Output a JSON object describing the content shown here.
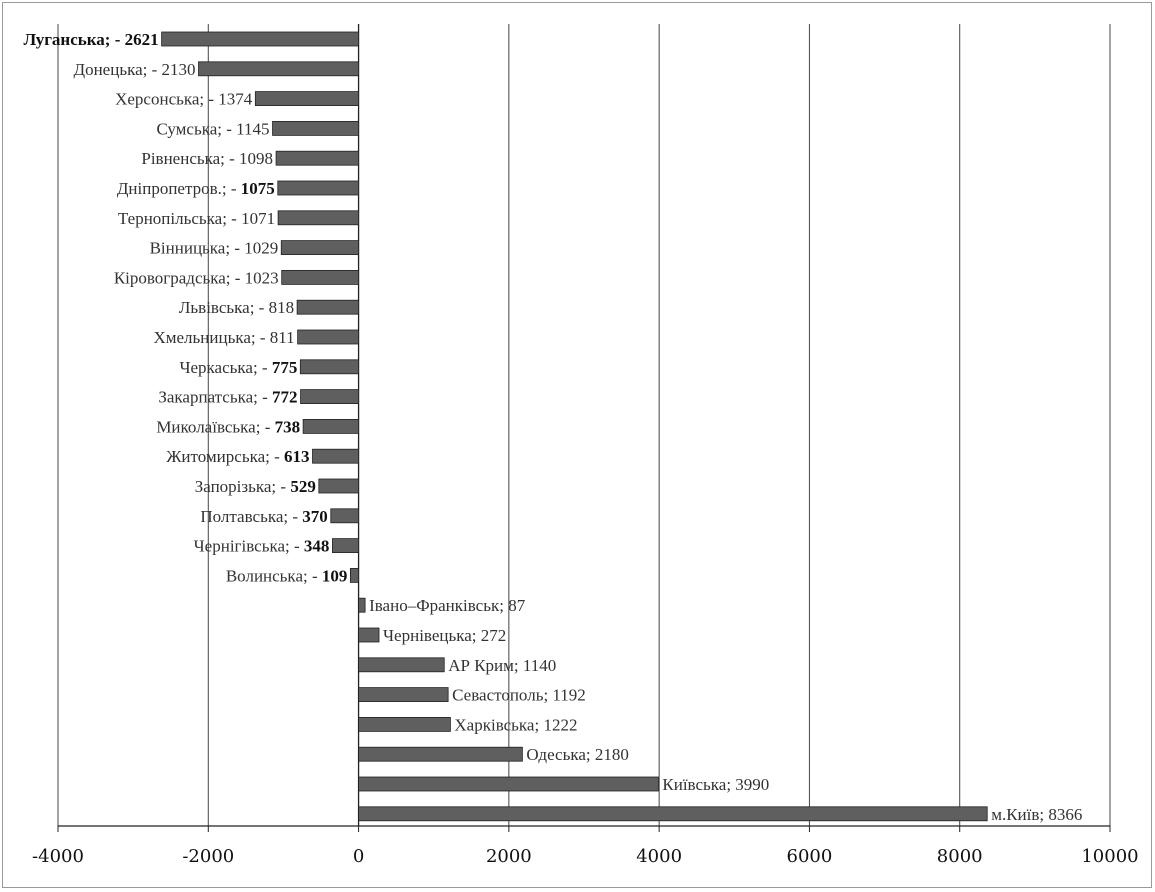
{
  "chart_data": {
    "type": "bar",
    "orientation": "horizontal",
    "xlim": [
      -4000,
      10000
    ],
    "x_ticks": [
      -4000,
      -2000,
      0,
      2000,
      4000,
      6000,
      8000,
      10000
    ],
    "grid": "vertical",
    "bar_color": "#5f5f5f",
    "categories": [
      {
        "name": "Луганська",
        "value": -2621,
        "label": "Луганська; - 2621",
        "bold": "full"
      },
      {
        "name": "Донецька",
        "value": -2130,
        "label": "Донецька; - 2130",
        "bold": "none"
      },
      {
        "name": "Херсонська",
        "value": -1374,
        "label": "Херсонська; - 1374",
        "bold": "none"
      },
      {
        "name": "Сумська",
        "value": -1145,
        "label": "Сумська; - 1145",
        "bold": "none"
      },
      {
        "name": "Рівненська",
        "value": -1098,
        "label": "Рівненська; - 1098",
        "bold": "none"
      },
      {
        "name": "Дніпропетров.",
        "value": -1075,
        "label": "Дніпропетров.; - 1075",
        "bold": "value"
      },
      {
        "name": "Тернопільська",
        "value": -1071,
        "label": "Тернопільська; - 1071",
        "bold": "none"
      },
      {
        "name": "Вінницька",
        "value": -1029,
        "label": "Вінницька; - 1029",
        "bold": "none"
      },
      {
        "name": "Кіровоградська",
        "value": -1023,
        "label": "Кіровоградська; - 1023",
        "bold": "none"
      },
      {
        "name": "Львівська",
        "value": -818,
        "label": "Львівська; - 818",
        "bold": "none"
      },
      {
        "name": "Хмельницька",
        "value": -811,
        "label": "Хмельницька; - 811",
        "bold": "none"
      },
      {
        "name": "Черкаська",
        "value": -775,
        "label": "Черкаська; - 775",
        "bold": "value"
      },
      {
        "name": "Закарпатська",
        "value": -772,
        "label": "Закарпатська; - 772",
        "bold": "value"
      },
      {
        "name": "Миколаївська",
        "value": -738,
        "label": "Миколаївська; - 738",
        "bold": "value"
      },
      {
        "name": "Житомирська",
        "value": -613,
        "label": "Житомирська; - 613",
        "bold": "value"
      },
      {
        "name": "Запорізька",
        "value": -529,
        "label": "Запорізька; - 529",
        "bold": "value"
      },
      {
        "name": "Полтавська",
        "value": -370,
        "label": "Полтавська; - 370",
        "bold": "value"
      },
      {
        "name": "Чернігівська",
        "value": -348,
        "label": "Чернігівська; - 348",
        "bold": "value"
      },
      {
        "name": "Волинська",
        "value": -109,
        "label": "Волинська; - 109",
        "bold": "value"
      },
      {
        "name": "Івано–Франківськ",
        "value": 87,
        "label": "Івано–Франківськ; 87",
        "bold": "none"
      },
      {
        "name": "Чернівецька",
        "value": 272,
        "label": "Чернівецька; 272",
        "bold": "none"
      },
      {
        "name": "АР Крим",
        "value": 1140,
        "label": "АР Крим; 1140",
        "bold": "none"
      },
      {
        "name": "Севастополь",
        "value": 1192,
        "label": "Севастополь; 1192",
        "bold": "none"
      },
      {
        "name": "Харківська",
        "value": 1222,
        "label": "Харківська; 1222",
        "bold": "none"
      },
      {
        "name": "Одеська",
        "value": 2180,
        "label": "Одеська; 2180",
        "bold": "none"
      },
      {
        "name": "Київська",
        "value": 3990,
        "label": "Київська; 3990",
        "bold": "none"
      },
      {
        "name": "м.Київ",
        "value": 8366,
        "label": "м.Київ; 8366",
        "bold": "none"
      }
    ]
  }
}
